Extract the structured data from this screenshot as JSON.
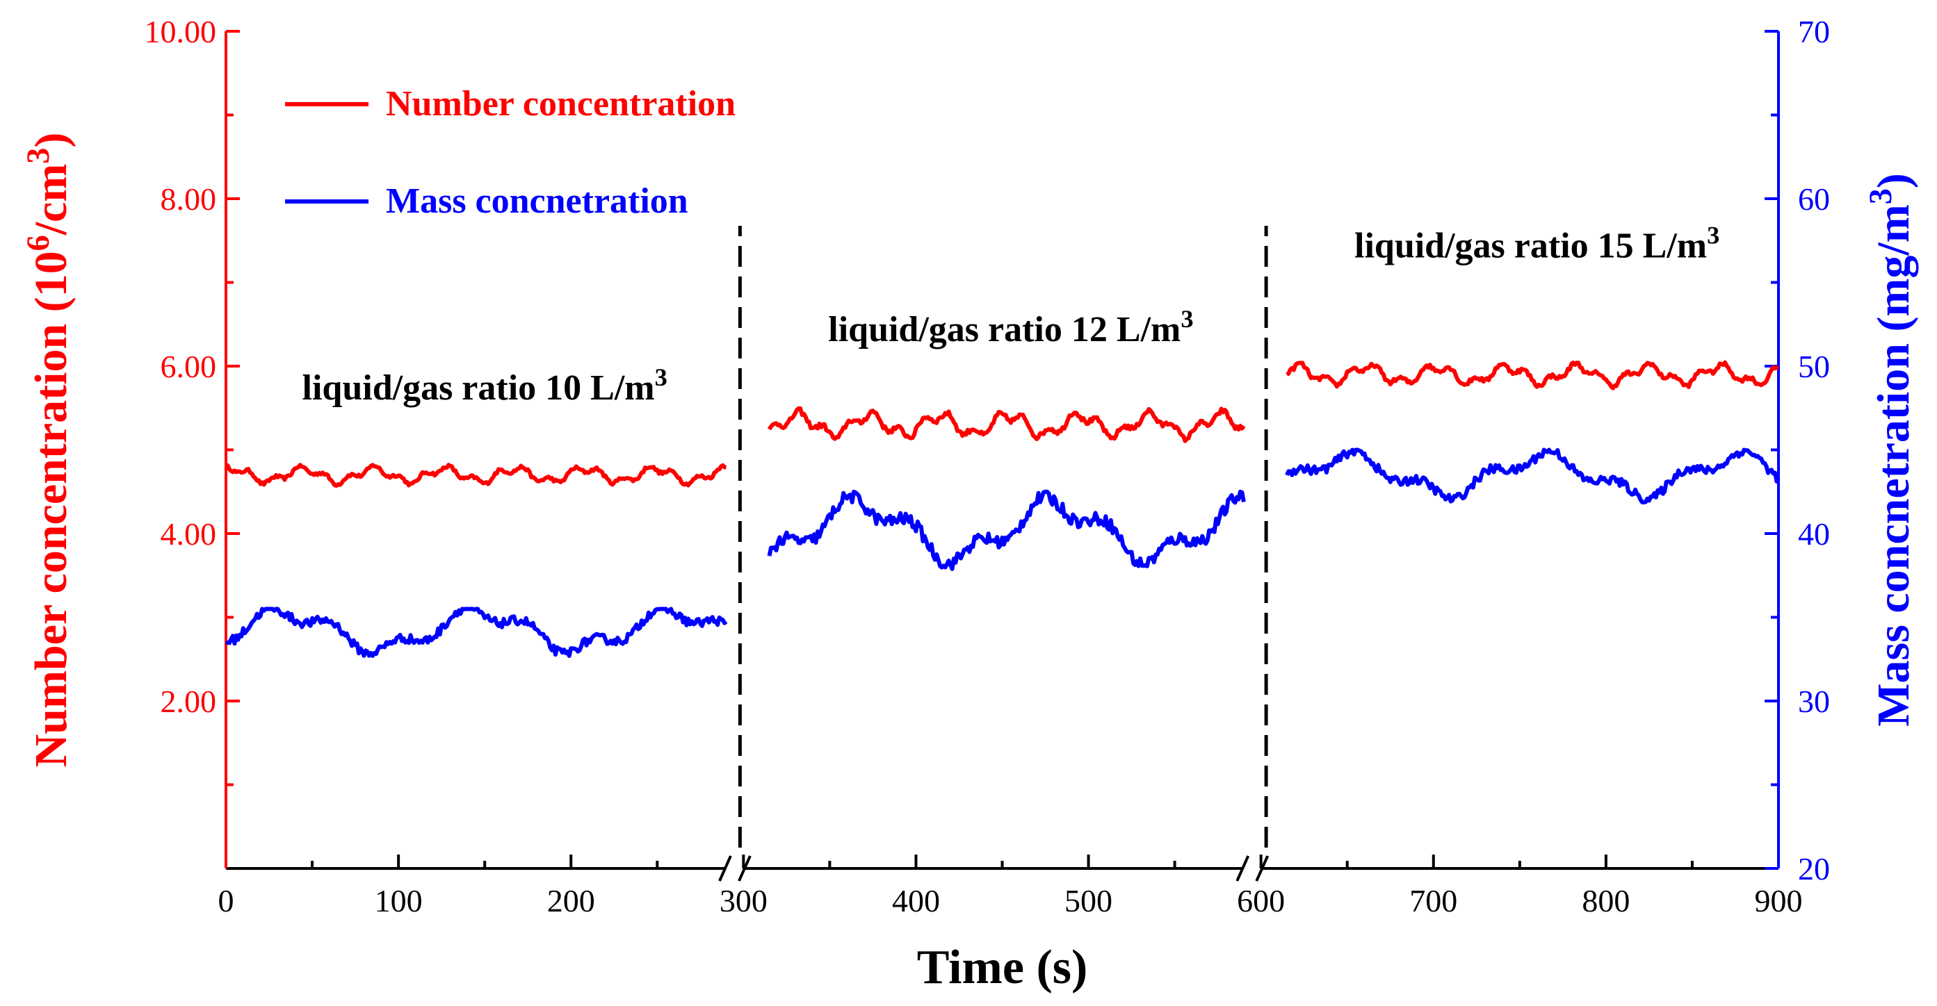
{
  "chart_data": {
    "type": "line",
    "xlabel": "Time (s)",
    "ylabel_left": {
      "text": "Number concentration (10",
      "sup": "6",
      "text2": "/cm",
      "sup2": "3",
      "text3": ")"
    },
    "ylabel_right": {
      "text": "Mass concnetration (mg/m",
      "sup": "3",
      "text2": ")"
    },
    "xlim": [
      0,
      900
    ],
    "ylim_left": [
      0,
      10
    ],
    "ylim_right": [
      20,
      70
    ],
    "x_ticks": [
      0,
      100,
      200,
      300,
      400,
      500,
      600,
      700,
      800,
      900
    ],
    "x_tick_labels": [
      "0",
      "100",
      "200",
      "300",
      "400",
      "500",
      "600",
      "700",
      "800",
      "900"
    ],
    "y_left_ticks": [
      2,
      4,
      6,
      8,
      10
    ],
    "y_left_tick_labels": [
      "2.00",
      "4.00",
      "6.00",
      "8.00",
      "10.00"
    ],
    "y_right_ticks": [
      20,
      30,
      40,
      50,
      60,
      70
    ],
    "y_right_tick_labels": [
      "20",
      "30",
      "40",
      "50",
      "60",
      "70"
    ],
    "axis_break_x": [
      295,
      595
    ],
    "phase_dividers_x": [
      298,
      603
    ],
    "colors": {
      "number": "#ff0000",
      "mass": "#0000ff",
      "axis_left": "#ff0000",
      "axis_right": "#0000ff",
      "axis_bottom": "#000000"
    },
    "legend": {
      "position": "top-left",
      "entries": [
        {
          "label": "Number concentration",
          "series": "number"
        },
        {
          "label": "Mass concnetration",
          "series": "mass"
        }
      ]
    },
    "annotations": [
      {
        "text": "liquid/gas ratio 10 L/m",
        "sup": "3",
        "x": 150,
        "y": 5.6
      },
      {
        "text": "liquid/gas ratio 12 L/m",
        "sup": "3",
        "x": 455,
        "y": 6.3
      },
      {
        "text": "liquid/gas ratio 15 L/m",
        "sup": "3",
        "x": 760,
        "y": 7.3
      }
    ],
    "series": [
      {
        "name": "Number concentration",
        "axis": "left",
        "color": "#ff0000",
        "segments": [
          {
            "x_start": 0,
            "x_end": 290,
            "mean": 4.7,
            "min": 4.55,
            "max": 4.82
          },
          {
            "x_start": 315,
            "x_end": 590,
            "mean": 5.3,
            "min": 5.1,
            "max": 5.5
          },
          {
            "x_start": 615,
            "x_end": 900,
            "mean": 5.9,
            "min": 5.72,
            "max": 6.05
          }
        ]
      },
      {
        "name": "Mass concnetration",
        "axis": "right",
        "color": "#0000ff",
        "segments": [
          {
            "x_start": 0,
            "x_end": 290,
            "mean": 34.2,
            "min": 32,
            "max": 35.5
          },
          {
            "x_start": 315,
            "x_end": 590,
            "mean": 40.2,
            "min": 37.5,
            "max": 42.5
          },
          {
            "x_start": 615,
            "x_end": 900,
            "mean": 43.5,
            "min": 41.5,
            "max": 45
          }
        ]
      }
    ]
  }
}
